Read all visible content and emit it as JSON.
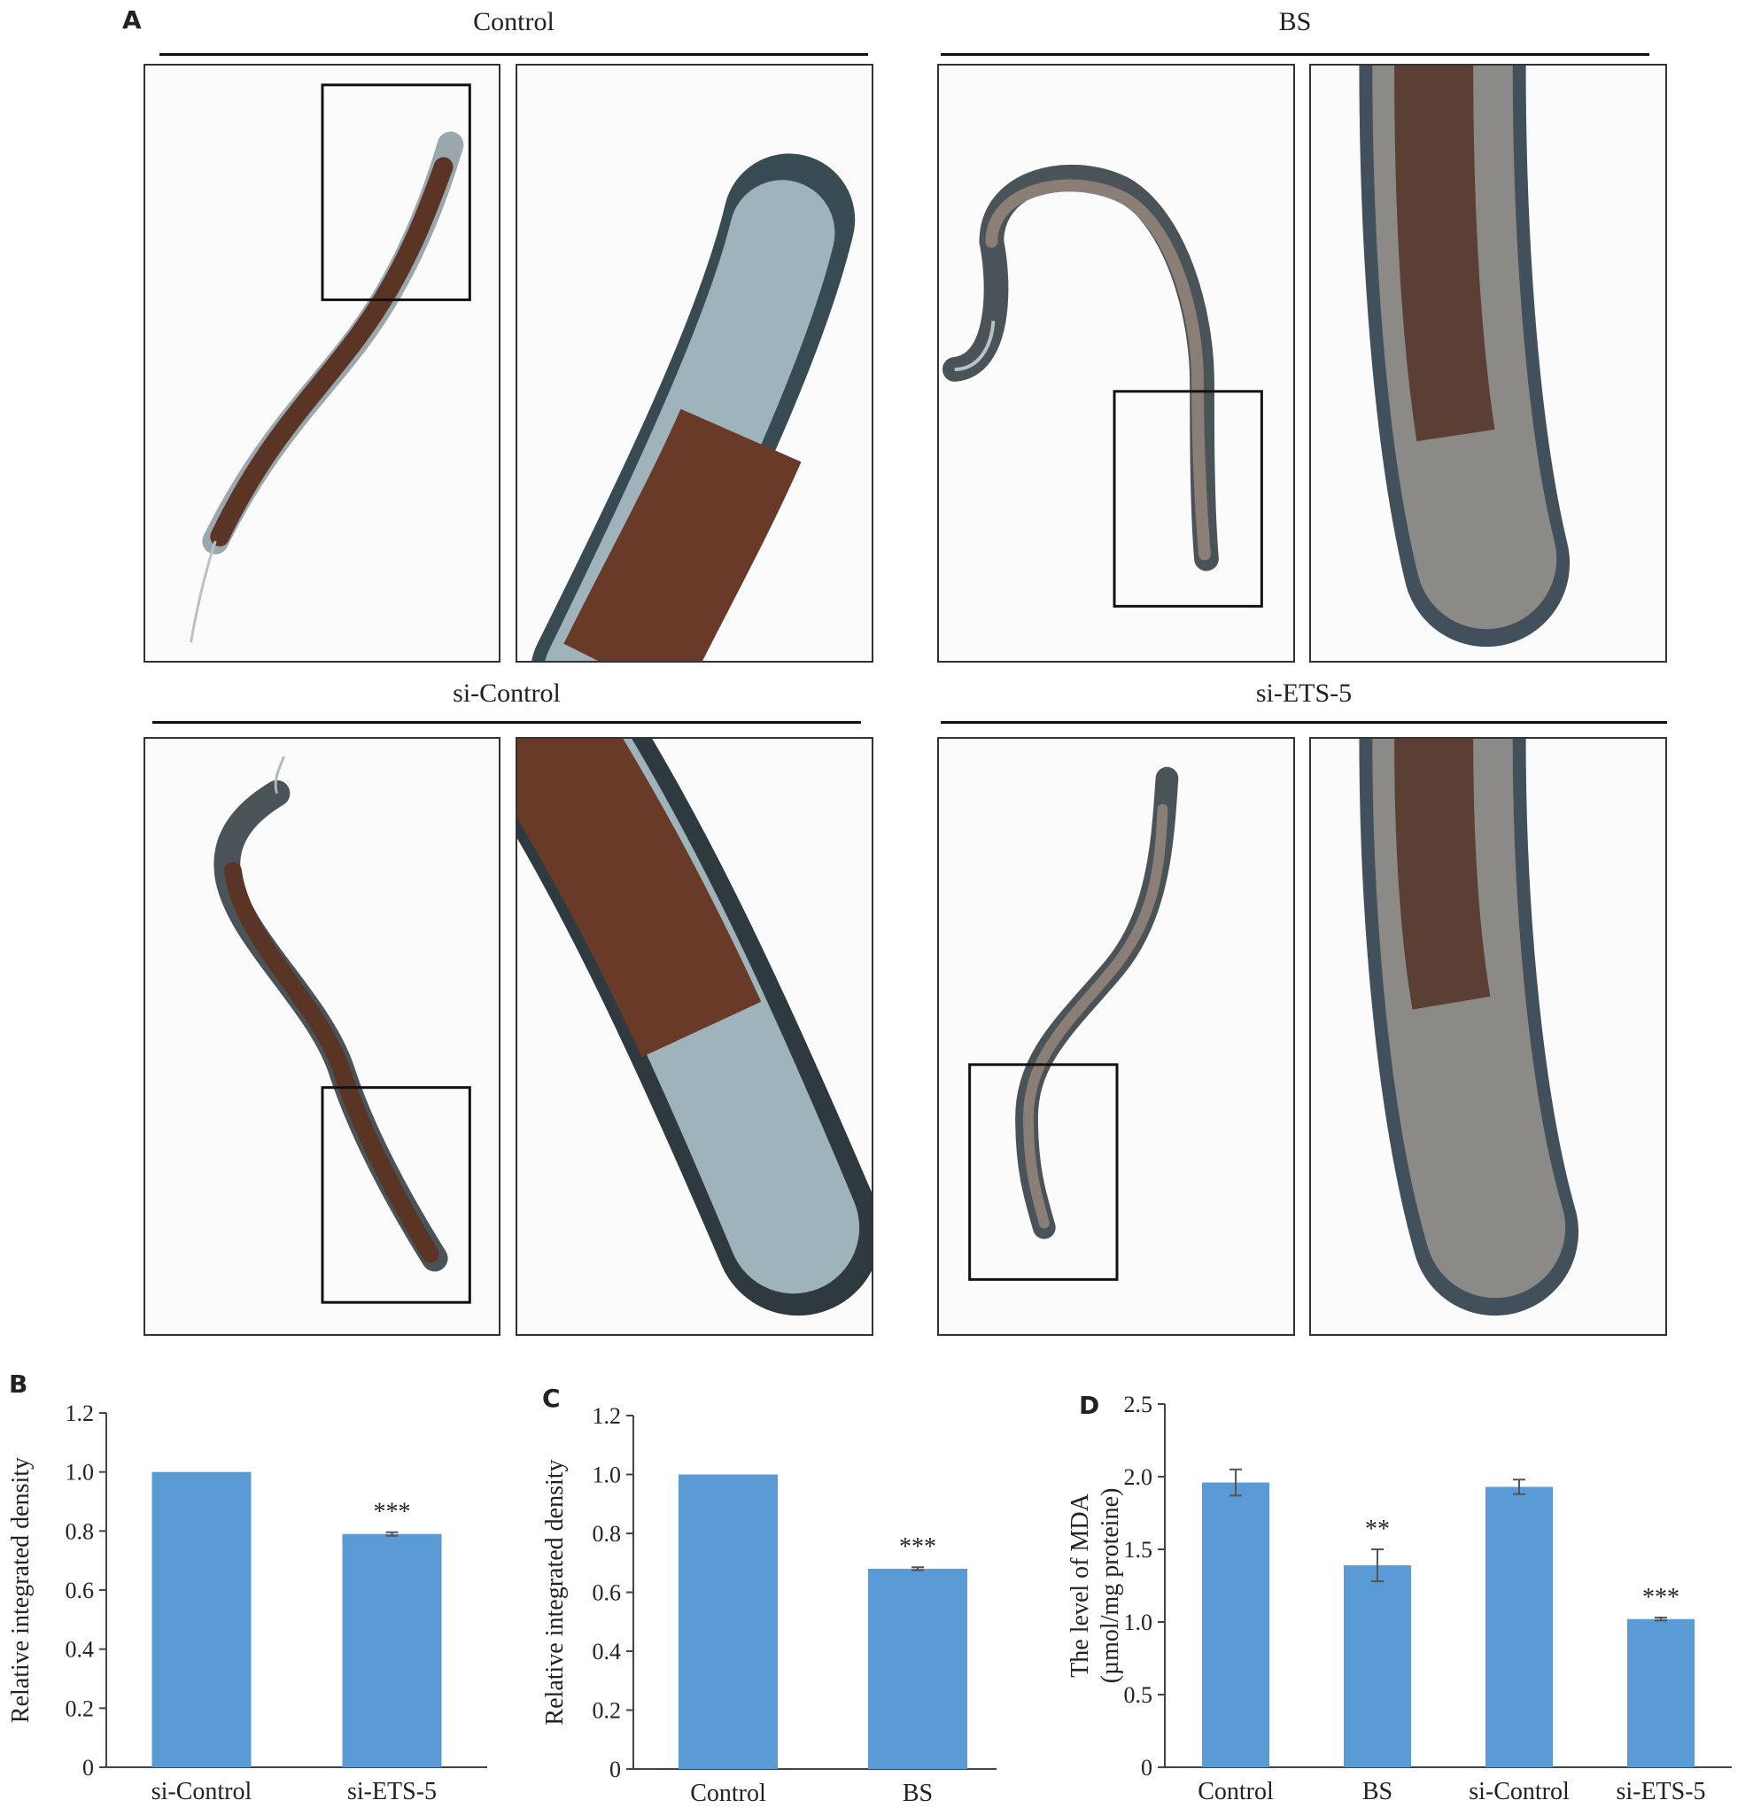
{
  "panels": {
    "a": "A",
    "b": "B",
    "c": "C",
    "d": "D"
  },
  "groups": [
    {
      "title": "Control"
    },
    {
      "title": "BS"
    },
    {
      "title": "si-Control"
    },
    {
      "title": "si-ETS-5"
    }
  ],
  "colors": {
    "bar": "#5b9bd5",
    "worm": "#5a3424",
    "worm_light": "#9aa7ad"
  },
  "chart_data": [
    {
      "type": "bar",
      "panel": "B",
      "categories": [
        "si-Control",
        "si-ETS-5"
      ],
      "values": [
        1.0,
        0.79
      ],
      "errors": [
        0,
        0.006
      ],
      "annotations": [
        "",
        "***"
      ],
      "ylabel": "Relative integrated density",
      "ylim": [
        0,
        1.2
      ],
      "yticks": [
        "0",
        "0.2",
        "0.4",
        "0.6",
        "0.8",
        "1.0",
        "1.2"
      ]
    },
    {
      "type": "bar",
      "panel": "C",
      "categories": [
        "Control",
        "BS"
      ],
      "values": [
        1.0,
        0.68
      ],
      "errors": [
        0,
        0.005
      ],
      "annotations": [
        "",
        "***"
      ],
      "ylabel": "Relative integrated density",
      "ylim": [
        0,
        1.2
      ],
      "yticks": [
        "0",
        "0.2",
        "0.4",
        "0.6",
        "0.8",
        "1.0",
        "1.2"
      ]
    },
    {
      "type": "bar",
      "panel": "D",
      "categories": [
        "Control",
        "BS",
        "si-Control",
        "si-ETS-5"
      ],
      "values": [
        1.96,
        1.39,
        1.93,
        1.02
      ],
      "errors": [
        0.09,
        0.11,
        0.05,
        0.01
      ],
      "annotations": [
        "",
        "**",
        "",
        "***"
      ],
      "ylabel": [
        "The level of MDA",
        "(µmol/mg proteine)"
      ],
      "ylim": [
        0,
        2.5
      ],
      "yticks": [
        "0",
        "0.5",
        "1.0",
        "1.5",
        "2.0",
        "2.5"
      ]
    }
  ]
}
